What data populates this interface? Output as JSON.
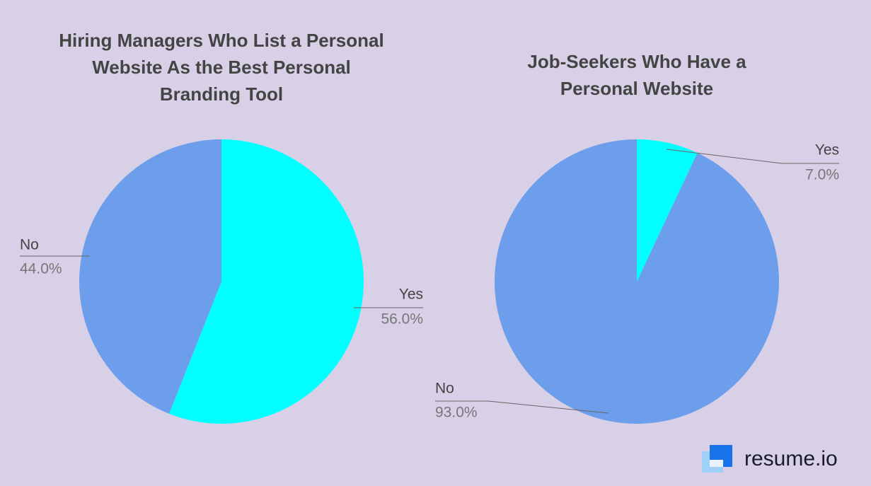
{
  "chart_data": [
    {
      "type": "pie",
      "title": "Hiring Managers Who List a Personal Website As the Best Personal Branding Tool",
      "categories": [
        "Yes",
        "No"
      ],
      "values": [
        56,
        44
      ],
      "value_labels": [
        "56.0%",
        "44.0%"
      ],
      "colors": [
        "#00ffff",
        "#6d9eeb"
      ]
    },
    {
      "type": "pie",
      "title": "Job-Seekers Who Have a Personal Website",
      "categories": [
        "Yes",
        "No"
      ],
      "values": [
        7,
        93
      ],
      "value_labels": [
        "7.0%",
        "93.0%"
      ],
      "colors": [
        "#00ffff",
        "#6d9eeb"
      ]
    }
  ],
  "brand": "resume.io"
}
